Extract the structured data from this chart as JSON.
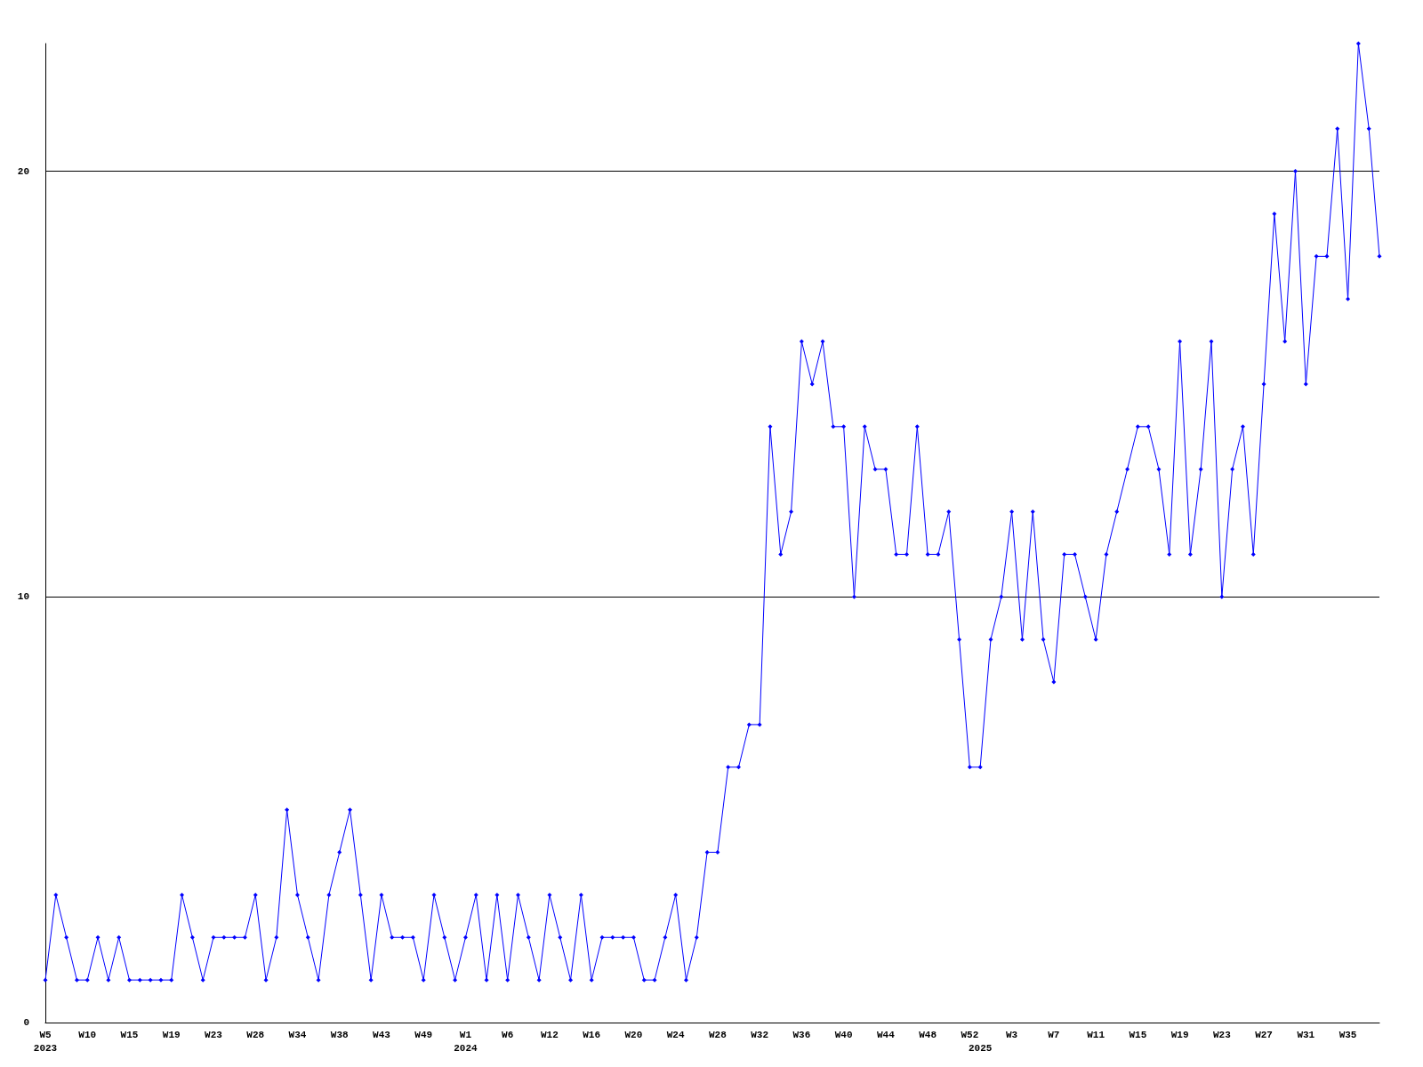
{
  "chart_data": {
    "type": "line",
    "categories": [
      "W5\n2023",
      null,
      null,
      null,
      "W10",
      null,
      null,
      null,
      "W15",
      null,
      null,
      null,
      "W19",
      null,
      null,
      null,
      "W23",
      null,
      null,
      null,
      "W28",
      null,
      null,
      null,
      "W34",
      null,
      null,
      null,
      "W38",
      null,
      null,
      null,
      "W43",
      null,
      null,
      null,
      "W49",
      null,
      null,
      null,
      "W1\n2024",
      null,
      null,
      null,
      "W6",
      null,
      null,
      null,
      "W12",
      null,
      null,
      null,
      "W16",
      null,
      null,
      null,
      "W20",
      null,
      null,
      null,
      "W24",
      null,
      null,
      null,
      "W28",
      null,
      null,
      null,
      "W32",
      null,
      null,
      null,
      "W36",
      null,
      null,
      null,
      "W40",
      null,
      null,
      null,
      "W44",
      null,
      null,
      null,
      "W48",
      null,
      null,
      null,
      "W52",
      "\n2025",
      null,
      null,
      "W3",
      null,
      null,
      null,
      "W7",
      null,
      null,
      null,
      "W11",
      null,
      null,
      null,
      "W15",
      null,
      null,
      null,
      "W19",
      null,
      null,
      null,
      "W23",
      null,
      null,
      null,
      "W27",
      null,
      null,
      null,
      "W31",
      null,
      null,
      null,
      "W35",
      null,
      null,
      null
    ],
    "series": [
      {
        "color": "#0000ff",
        "values": [
          1,
          3,
          2,
          1,
          1,
          2,
          1,
          2,
          1,
          1,
          1,
          1,
          1,
          3,
          2,
          1,
          2,
          2,
          2,
          2,
          3,
          1,
          2,
          5,
          3,
          2,
          1,
          3,
          4,
          5,
          3,
          1,
          3,
          2,
          2,
          2,
          1,
          3,
          2,
          1,
          2,
          3,
          1,
          3,
          1,
          3,
          2,
          1,
          3,
          2,
          1,
          3,
          1,
          2,
          2,
          2,
          2,
          1,
          1,
          2,
          3,
          1,
          2,
          4,
          4,
          6,
          6,
          7,
          7,
          14,
          11,
          12,
          16,
          15,
          16,
          14,
          14,
          10,
          14,
          13,
          13,
          11,
          11,
          14,
          11,
          11,
          12,
          9,
          6,
          6,
          9,
          10,
          12,
          9,
          12,
          9,
          8,
          11,
          11,
          10,
          9,
          11,
          12,
          13,
          14,
          14,
          13,
          11,
          16,
          11,
          13,
          16,
          10,
          13,
          14,
          11,
          15,
          19,
          16,
          20,
          15,
          18,
          18,
          21,
          17,
          23,
          21,
          18
        ]
      }
    ],
    "ylim": [
      0,
      23
    ],
    "yticks": [
      0,
      10,
      20
    ],
    "grid": "y",
    "marker": "diamond",
    "line_style": "solid"
  }
}
